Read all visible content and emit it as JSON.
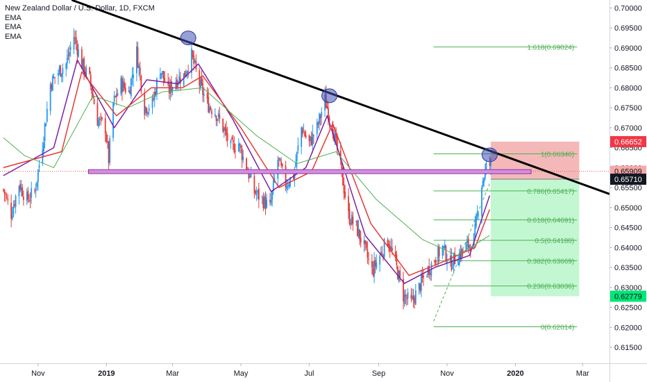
{
  "header": {
    "symbol_title": "New Zealand Dollar / U.S. Dollar, 1D, FXCM",
    "indicators": [
      "EMA",
      "EMA",
      "EMA"
    ]
  },
  "chart_data": {
    "type": "candlestick",
    "title": "New Zealand Dollar / U.S. Dollar, 1D, FXCM",
    "ylim": [
      0.611,
      0.702
    ],
    "x_range": [
      "2018-09-28",
      "2020-03-25"
    ],
    "x_ticks": [
      {
        "date": "2018-11-01",
        "label": "Nov"
      },
      {
        "date": "2019-01-01",
        "label": "2019"
      },
      {
        "date": "2019-03-01",
        "label": "Mar"
      },
      {
        "date": "2019-05-01",
        "label": "May"
      },
      {
        "date": "2019-07-01",
        "label": "Jul"
      },
      {
        "date": "2019-09-01",
        "label": "Sep"
      },
      {
        "date": "2019-11-01",
        "label": "Nov"
      },
      {
        "date": "2020-01-01",
        "label": "2020"
      },
      {
        "date": "2020-03-01",
        "label": "Mar"
      }
    ],
    "y_ticks": [
      0.615,
      0.62,
      0.625,
      0.63,
      0.635,
      0.64,
      0.645,
      0.65,
      0.655,
      0.66,
      0.665,
      0.67,
      0.675,
      0.68,
      0.685,
      0.69,
      0.695,
      0.7
    ],
    "y_tick_labels": [
      "0.61500",
      "0.62000",
      "0.62500",
      "0.63000",
      "0.63500",
      "0.64000",
      "0.64500",
      "0.65000",
      "0.65500",
      "0.66000",
      "0.66500",
      "0.67000",
      "0.67500",
      "0.68000",
      "0.68500",
      "0.69000",
      "0.69500",
      "0.70000"
    ],
    "price_path": [
      [
        "2018-10-01",
        0.6545
      ],
      [
        "2018-10-08",
        0.6485
      ],
      [
        "2018-10-15",
        0.656
      ],
      [
        "2018-10-22",
        0.652
      ],
      [
        "2018-10-29",
        0.654
      ],
      [
        "2018-11-05",
        0.666
      ],
      [
        "2018-11-12",
        0.681
      ],
      [
        "2018-11-19",
        0.684
      ],
      [
        "2018-11-26",
        0.686
      ],
      [
        "2018-12-03",
        0.693
      ],
      [
        "2018-12-10",
        0.686
      ],
      [
        "2018-12-17",
        0.682
      ],
      [
        "2018-12-24",
        0.672
      ],
      [
        "2018-12-31",
        0.67
      ],
      [
        "2019-01-03",
        0.662
      ],
      [
        "2019-01-07",
        0.676
      ],
      [
        "2019-01-14",
        0.681
      ],
      [
        "2019-01-21",
        0.679
      ],
      [
        "2019-01-28",
        0.689
      ],
      [
        "2019-02-04",
        0.675
      ],
      [
        "2019-02-11",
        0.676
      ],
      [
        "2019-02-18",
        0.685
      ],
      [
        "2019-02-25",
        0.679
      ],
      [
        "2019-03-04",
        0.682
      ],
      [
        "2019-03-11",
        0.683
      ],
      [
        "2019-03-18",
        0.688
      ],
      [
        "2019-03-25",
        0.681
      ],
      [
        "2019-04-01",
        0.676
      ],
      [
        "2019-04-08",
        0.674
      ],
      [
        "2019-04-15",
        0.67
      ],
      [
        "2019-04-22",
        0.665
      ],
      [
        "2019-04-29",
        0.666
      ],
      [
        "2019-05-06",
        0.66
      ],
      [
        "2019-05-13",
        0.654
      ],
      [
        "2019-05-20",
        0.652
      ],
      [
        "2019-05-27",
        0.65
      ],
      [
        "2019-06-03",
        0.662
      ],
      [
        "2019-06-10",
        0.656
      ],
      [
        "2019-06-17",
        0.658
      ],
      [
        "2019-06-24",
        0.67
      ],
      [
        "2019-07-01",
        0.666
      ],
      [
        "2019-07-08",
        0.67
      ],
      [
        "2019-07-15",
        0.677
      ],
      [
        "2019-07-22",
        0.67
      ],
      [
        "2019-07-29",
        0.66
      ],
      [
        "2019-08-05",
        0.648
      ],
      [
        "2019-08-12",
        0.645
      ],
      [
        "2019-08-19",
        0.64
      ],
      [
        "2019-08-26",
        0.634
      ],
      [
        "2019-09-02",
        0.638
      ],
      [
        "2019-09-09",
        0.642
      ],
      [
        "2019-09-16",
        0.636
      ],
      [
        "2019-09-23",
        0.628
      ],
      [
        "2019-09-30",
        0.626
      ],
      [
        "2019-10-07",
        0.63
      ],
      [
        "2019-10-14",
        0.634
      ],
      [
        "2019-10-21",
        0.637
      ],
      [
        "2019-10-28",
        0.64
      ],
      [
        "2019-11-04",
        0.636
      ],
      [
        "2019-11-11",
        0.638
      ],
      [
        "2019-11-18",
        0.64
      ],
      [
        "2019-11-25",
        0.642
      ],
      [
        "2019-12-02",
        0.656
      ],
      [
        "2019-12-06",
        0.66
      ],
      [
        "2019-12-10",
        0.661
      ]
    ],
    "ema_series": [
      {
        "color": "#7b1fa2",
        "points": [
          [
            "2018-10-01",
            0.658
          ],
          [
            "2018-11-15",
            0.665
          ],
          [
            "2018-12-06",
            0.687
          ],
          [
            "2019-01-08",
            0.67
          ],
          [
            "2019-02-06",
            0.682
          ],
          [
            "2019-03-06",
            0.681
          ],
          [
            "2019-03-24",
            0.686
          ],
          [
            "2019-04-24",
            0.672
          ],
          [
            "2019-05-28",
            0.654
          ],
          [
            "2019-06-28",
            0.66
          ],
          [
            "2019-07-17",
            0.673
          ],
          [
            "2019-08-20",
            0.643
          ],
          [
            "2019-09-24",
            0.631
          ],
          [
            "2019-10-21",
            0.635
          ],
          [
            "2019-11-21",
            0.638
          ],
          [
            "2019-12-09",
            0.653
          ]
        ]
      },
      {
        "color": "#e53935",
        "points": [
          [
            "2018-10-01",
            0.66
          ],
          [
            "2018-11-22",
            0.664
          ],
          [
            "2018-12-10",
            0.684
          ],
          [
            "2019-01-10",
            0.673
          ],
          [
            "2019-02-10",
            0.68
          ],
          [
            "2019-03-10",
            0.68
          ],
          [
            "2019-03-28",
            0.683
          ],
          [
            "2019-05-01",
            0.67
          ],
          [
            "2019-06-04",
            0.655
          ],
          [
            "2019-07-03",
            0.659
          ],
          [
            "2019-07-22",
            0.671
          ],
          [
            "2019-08-25",
            0.646
          ],
          [
            "2019-09-28",
            0.633
          ],
          [
            "2019-10-25",
            0.636
          ],
          [
            "2019-11-26",
            0.64
          ],
          [
            "2019-12-09",
            0.6495
          ]
        ]
      },
      {
        "color": "#4caf50",
        "points": [
          [
            "2018-10-01",
            0.6675
          ],
          [
            "2018-10-20",
            0.663
          ],
          [
            "2018-11-15",
            0.66
          ],
          [
            "2018-12-20",
            0.678
          ],
          [
            "2019-01-20",
            0.675
          ],
          [
            "2019-02-20",
            0.679
          ],
          [
            "2019-03-28",
            0.68
          ],
          [
            "2019-05-15",
            0.668
          ],
          [
            "2019-06-20",
            0.661
          ],
          [
            "2019-07-25",
            0.664
          ],
          [
            "2019-08-30",
            0.652
          ],
          [
            "2019-10-10",
            0.642
          ],
          [
            "2019-11-10",
            0.638
          ],
          [
            "2019-12-09",
            0.643
          ]
        ]
      }
    ],
    "trendline": {
      "from": [
        "2018-12-01",
        0.702
      ],
      "to": [
        "2020-03-25",
        0.6534
      ],
      "color": "#000000"
    },
    "touch_points": [
      [
        "2019-03-15",
        0.6925
      ],
      [
        "2019-07-19",
        0.678
      ],
      [
        "2019-12-09",
        0.6632
      ]
    ],
    "support_zone": {
      "from": "2018-12-16",
      "to": "2020-01-15",
      "y_low": 0.6585,
      "y_high": 0.6595,
      "color": "#ce93d8"
    },
    "current_price_line": {
      "y": 0.65909,
      "color": "#ef5350"
    },
    "fibonacci": {
      "from": "2019-10-20",
      "to": "2020-02-25",
      "color": "#4caf50",
      "levels": [
        {
          "ratio": "1.618",
          "label": "1.618(0.69024)",
          "value": 0.69024
        },
        {
          "ratio": "1",
          "label": "1(0.66346)",
          "value": 0.66346
        },
        {
          "ratio": "0.786",
          "label": "0.786(0.65417)",
          "value": 0.65417
        },
        {
          "ratio": "0.618",
          "label": "0.618(0.64691)",
          "value": 0.64691
        },
        {
          "ratio": "0.5",
          "label": "0.5(0.64180)",
          "value": 0.6418
        },
        {
          "ratio": "0.382",
          "label": "0.382(0.63669)",
          "value": 0.63669
        },
        {
          "ratio": "0.236",
          "label": "0.236(0.63036)",
          "value": 0.63036
        },
        {
          "ratio": "0",
          "label": "0(0.62014)",
          "value": 0.62014
        }
      ],
      "trend_line": {
        "from": [
          "2019-10-20",
          0.6215
        ],
        "to": [
          "2019-12-09",
          0.656
        ]
      }
    },
    "position": {
      "from": "2019-12-10",
      "to": "2020-02-27",
      "entry": 0.6571,
      "stop": 0.66652,
      "target": 0.62779,
      "stop_color": "#ef9a9a",
      "target_color": "#b9f6ca"
    },
    "price_labels": [
      {
        "text": "0.66652",
        "value": 0.66652,
        "bg": "#f23645",
        "fg": "#ffffff"
      },
      {
        "text": "0.65909",
        "value": 0.65909,
        "bg": "#f7a8a8",
        "fg": "#131722"
      },
      {
        "text": "0.65710",
        "value": 0.6571,
        "bg": "#131722",
        "fg": "#ffffff"
      },
      {
        "text": "0.62779",
        "value": 0.62779,
        "bg": "#00e676",
        "fg": "#131722"
      }
    ]
  }
}
